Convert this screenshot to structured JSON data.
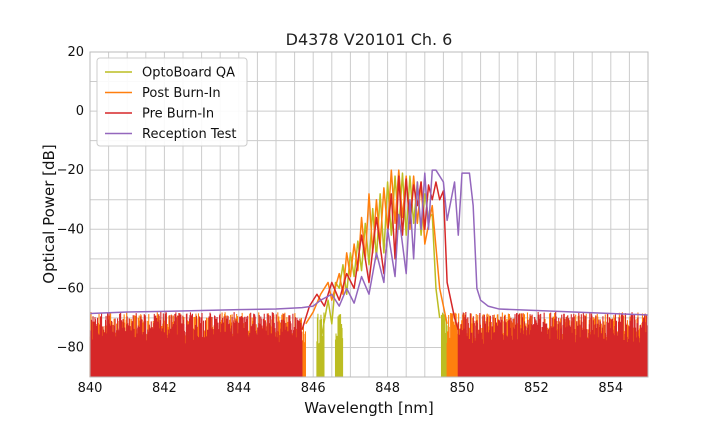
{
  "chart_data": {
    "type": "line",
    "title": "D4378 V20101 Ch. 6",
    "xlabel": "Wavelength [nm]",
    "ylabel": "Optical Power [dB]",
    "xlim": [
      840,
      855
    ],
    "ylim": [
      -90,
      20
    ],
    "xticks": [
      840,
      842,
      844,
      846,
      848,
      850,
      852,
      854
    ],
    "yticks": [
      -80,
      -60,
      -40,
      -20,
      0,
      20
    ],
    "x_minor_step": 0.5,
    "y_minor_step": 10,
    "grid": true,
    "legend_position": "top-left",
    "series": [
      {
        "name": "OptoBoard QA",
        "color": "#bcbd22",
        "noise_floor": -90,
        "noise_ranges": [
          [
            846.1,
            846.3
          ],
          [
            846.6,
            846.8
          ],
          [
            849.45,
            849.6
          ]
        ],
        "points": [
          [
            846.2,
            -78
          ],
          [
            846.4,
            -64
          ],
          [
            846.5,
            -72
          ],
          [
            846.6,
            -58
          ],
          [
            846.7,
            -60
          ],
          [
            846.8,
            -52
          ],
          [
            846.9,
            -62
          ],
          [
            847.0,
            -48
          ],
          [
            847.1,
            -56
          ],
          [
            847.2,
            -44
          ],
          [
            847.3,
            -54
          ],
          [
            847.4,
            -38
          ],
          [
            847.5,
            -52
          ],
          [
            847.6,
            -33
          ],
          [
            847.7,
            -50
          ],
          [
            847.8,
            -28
          ],
          [
            847.9,
            -48
          ],
          [
            848.0,
            -24
          ],
          [
            848.1,
            -42
          ],
          [
            848.2,
            -22
          ],
          [
            848.3,
            -40
          ],
          [
            848.4,
            -21
          ],
          [
            848.5,
            -42
          ],
          [
            848.6,
            -22
          ],
          [
            848.7,
            -38
          ],
          [
            848.8,
            -24
          ],
          [
            848.9,
            -42
          ],
          [
            849.0,
            -28
          ],
          [
            849.1,
            -36
          ],
          [
            849.2,
            -35
          ],
          [
            849.3,
            -60
          ],
          [
            849.4,
            -70
          ]
        ]
      },
      {
        "name": "Post Burn-In",
        "color": "#ff7f0e",
        "noise_floor": -90,
        "noise_ranges": [
          [
            840.0,
            845.8
          ],
          [
            849.6,
            855.0
          ]
        ],
        "points": [
          [
            845.8,
            -72
          ],
          [
            846.0,
            -68
          ],
          [
            846.2,
            -62
          ],
          [
            846.4,
            -58
          ],
          [
            846.5,
            -64
          ],
          [
            846.7,
            -55
          ],
          [
            846.8,
            -62
          ],
          [
            846.9,
            -48
          ],
          [
            847.0,
            -56
          ],
          [
            847.1,
            -45
          ],
          [
            847.2,
            -54
          ],
          [
            847.3,
            -36
          ],
          [
            847.4,
            -50
          ],
          [
            847.5,
            -28
          ],
          [
            847.6,
            -48
          ],
          [
            847.7,
            -30
          ],
          [
            847.8,
            -45
          ],
          [
            847.9,
            -26
          ],
          [
            848.0,
            -40
          ],
          [
            848.1,
            -20
          ],
          [
            848.2,
            -38
          ],
          [
            848.3,
            -20
          ],
          [
            848.4,
            -36
          ],
          [
            848.5,
            -22
          ],
          [
            848.6,
            -40
          ],
          [
            848.7,
            -22
          ],
          [
            848.8,
            -38
          ],
          [
            848.9,
            -24
          ],
          [
            849.0,
            -45
          ],
          [
            849.2,
            -32
          ],
          [
            849.4,
            -60
          ],
          [
            849.6,
            -72
          ]
        ]
      },
      {
        "name": "Pre Burn-In",
        "color": "#d62728",
        "noise_floor": -90,
        "noise_ranges": [
          [
            840.0,
            845.7
          ],
          [
            849.9,
            855.0
          ]
        ],
        "points": [
          [
            845.7,
            -74
          ],
          [
            845.9,
            -66
          ],
          [
            846.1,
            -62
          ],
          [
            846.3,
            -66
          ],
          [
            846.5,
            -58
          ],
          [
            846.7,
            -64
          ],
          [
            846.9,
            -55
          ],
          [
            847.1,
            -60
          ],
          [
            847.3,
            -42
          ],
          [
            847.5,
            -58
          ],
          [
            847.7,
            -36
          ],
          [
            847.9,
            -55
          ],
          [
            848.1,
            -28
          ],
          [
            848.2,
            -50
          ],
          [
            848.3,
            -22
          ],
          [
            848.4,
            -42
          ],
          [
            848.5,
            -23
          ],
          [
            848.6,
            -38
          ],
          [
            848.7,
            -25
          ],
          [
            848.8,
            -32
          ],
          [
            848.9,
            -24
          ],
          [
            849.0,
            -40
          ],
          [
            849.1,
            -25
          ],
          [
            849.2,
            -30
          ],
          [
            849.3,
            -24
          ],
          [
            849.4,
            -30
          ],
          [
            849.5,
            -27
          ],
          [
            849.6,
            -58
          ],
          [
            849.8,
            -70
          ],
          [
            849.9,
            -74
          ]
        ]
      },
      {
        "name": "Reception Test",
        "color": "#9467bd",
        "points": [
          [
            840.0,
            -68.5
          ],
          [
            841.0,
            -68
          ],
          [
            842.0,
            -67.8
          ],
          [
            843.0,
            -67.5
          ],
          [
            844.0,
            -67.2
          ],
          [
            845.0,
            -67
          ],
          [
            845.7,
            -66.5
          ],
          [
            846.0,
            -66
          ],
          [
            846.2,
            -64
          ],
          [
            846.5,
            -62
          ],
          [
            846.7,
            -66
          ],
          [
            846.9,
            -60
          ],
          [
            847.1,
            -65
          ],
          [
            847.3,
            -56
          ],
          [
            847.5,
            -62
          ],
          [
            847.7,
            -48
          ],
          [
            847.9,
            -58
          ],
          [
            848.0,
            -40
          ],
          [
            848.2,
            -56
          ],
          [
            848.3,
            -35
          ],
          [
            848.5,
            -55
          ],
          [
            848.6,
            -30
          ],
          [
            848.7,
            -50
          ],
          [
            848.8,
            -24
          ],
          [
            848.9,
            -40
          ],
          [
            849.0,
            -21
          ],
          [
            849.1,
            -40
          ],
          [
            849.2,
            -20
          ],
          [
            849.3,
            -20
          ],
          [
            849.5,
            -24
          ],
          [
            849.6,
            -37
          ],
          [
            849.8,
            -24
          ],
          [
            849.9,
            -42
          ],
          [
            850.0,
            -21
          ],
          [
            850.2,
            -21
          ],
          [
            850.3,
            -32
          ],
          [
            850.4,
            -60
          ],
          [
            850.5,
            -64
          ],
          [
            850.7,
            -66
          ],
          [
            851.0,
            -67
          ],
          [
            852.0,
            -67.5
          ],
          [
            853.0,
            -68
          ],
          [
            854.0,
            -68.5
          ],
          [
            855.0,
            -69
          ]
        ]
      }
    ]
  }
}
